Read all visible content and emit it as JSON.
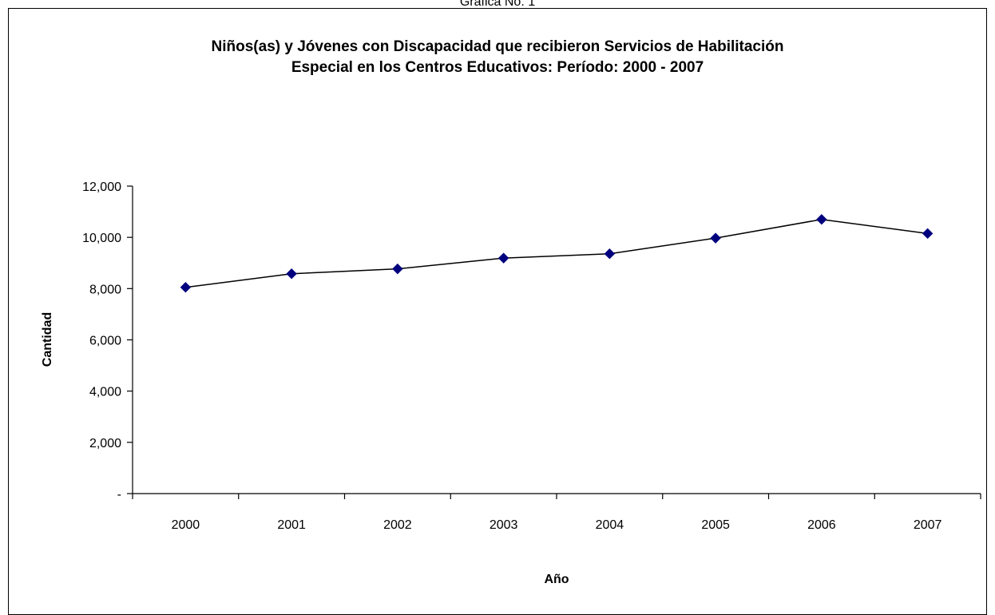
{
  "header": {
    "caption": "Gráfica No. 1"
  },
  "chart_data": {
    "type": "line",
    "title_lines": [
      "Niños(as) y Jóvenes con Discapacidad que recibieron Servicios de Habilitación",
      "Especial en los Centros Educativos:  Período:  2000 - 2007"
    ],
    "xlabel": "Año",
    "ylabel": "Cantidad",
    "categories": [
      "2000",
      "2001",
      "2002",
      "2003",
      "2004",
      "2005",
      "2006",
      "2007"
    ],
    "series": [
      {
        "values": [
          8050,
          8580,
          8770,
          9190,
          9360,
          9970,
          10700,
          10150
        ]
      }
    ],
    "ylim": [
      0,
      12000
    ],
    "yticks": [
      0,
      2000,
      4000,
      6000,
      8000,
      10000,
      12000
    ],
    "ytick_labels": [
      "-",
      "2,000",
      "4,000",
      "6,000",
      "8,000",
      "10,000",
      "12,000"
    ],
    "grid": false,
    "legend": "none",
    "colors": {
      "marker": "#00007f",
      "line": "#000000"
    }
  }
}
